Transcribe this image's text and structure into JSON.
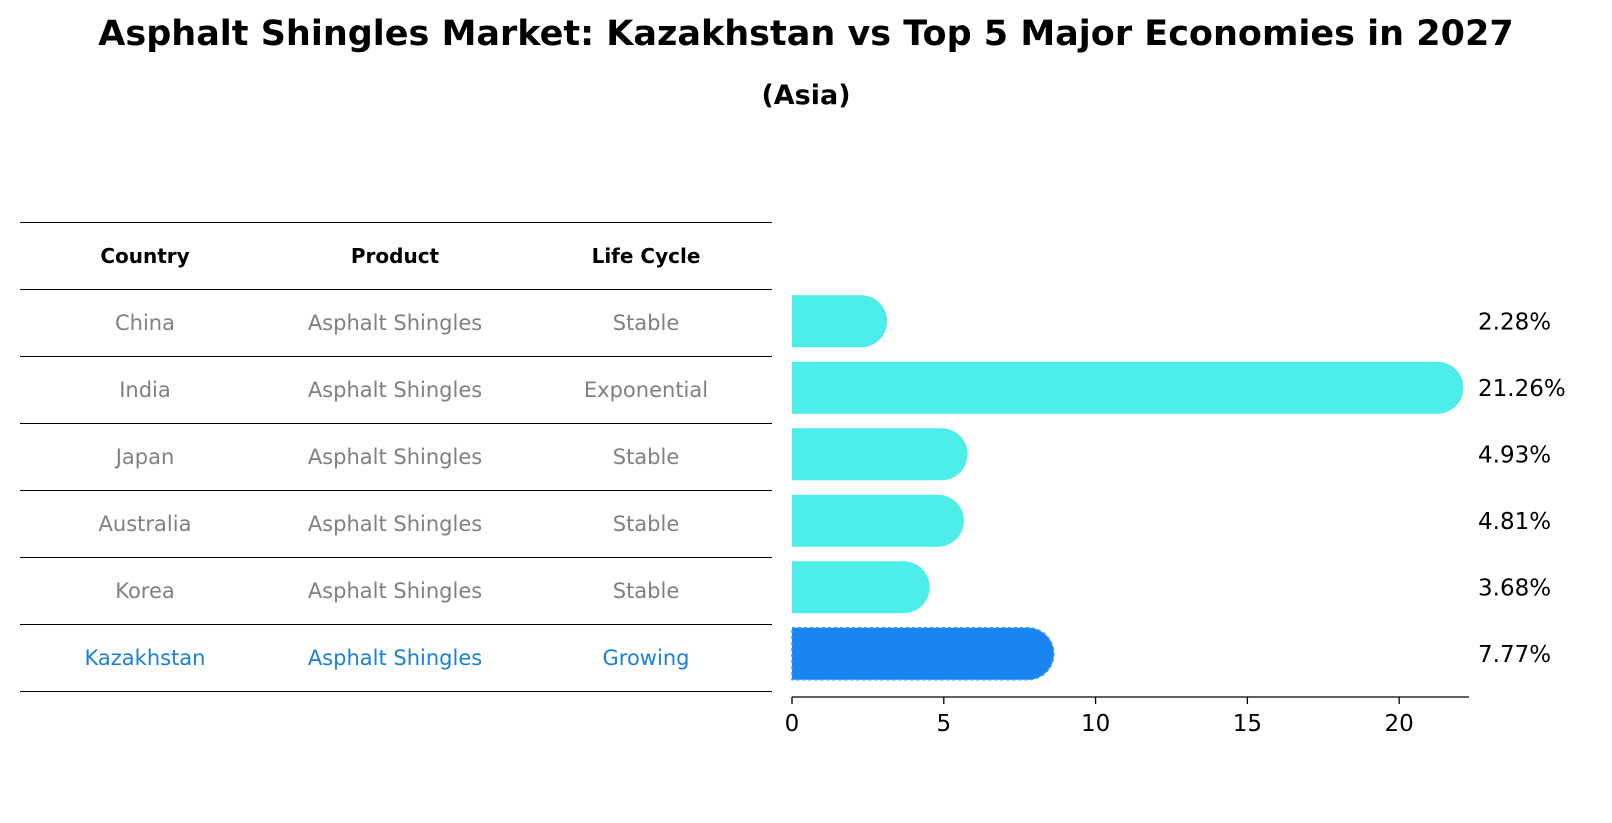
{
  "title": "Asphalt Shingles Market: Kazakhstan vs Top 5 Major Economies in 2027",
  "subtitle": "(Asia)",
  "table": {
    "headers": [
      "Country",
      "Product",
      "Life Cycle"
    ],
    "rows": [
      {
        "country": "China",
        "product": "Asphalt Shingles",
        "life_cycle": "Stable",
        "highlight": false
      },
      {
        "country": "India",
        "product": "Asphalt Shingles",
        "life_cycle": "Exponential",
        "highlight": false
      },
      {
        "country": "Japan",
        "product": "Asphalt Shingles",
        "life_cycle": "Stable",
        "highlight": false
      },
      {
        "country": "Australia",
        "product": "Asphalt Shingles",
        "life_cycle": "Stable",
        "highlight": false
      },
      {
        "country": "Korea",
        "product": "Asphalt Shingles",
        "life_cycle": "Stable",
        "highlight": false
      },
      {
        "country": "Kazakhstan",
        "product": "Asphalt Shingles",
        "life_cycle": "Growing",
        "highlight": true
      }
    ]
  },
  "chart_data": {
    "type": "bar",
    "orientation": "horizontal",
    "categories": [
      "China",
      "India",
      "Japan",
      "Australia",
      "Korea",
      "Kazakhstan"
    ],
    "values": [
      2.28,
      21.26,
      4.93,
      4.81,
      3.68,
      7.77
    ],
    "value_labels": [
      "2.28%",
      "21.26%",
      "4.93%",
      "4.81%",
      "3.68%",
      "7.77%"
    ],
    "highlight_index": 5,
    "xlim": [
      0,
      22.3
    ],
    "xticks": [
      0,
      5,
      10,
      15,
      20
    ],
    "colors": {
      "default": "#4deeea",
      "highlight": "#1a84f0"
    },
    "grid": false
  }
}
